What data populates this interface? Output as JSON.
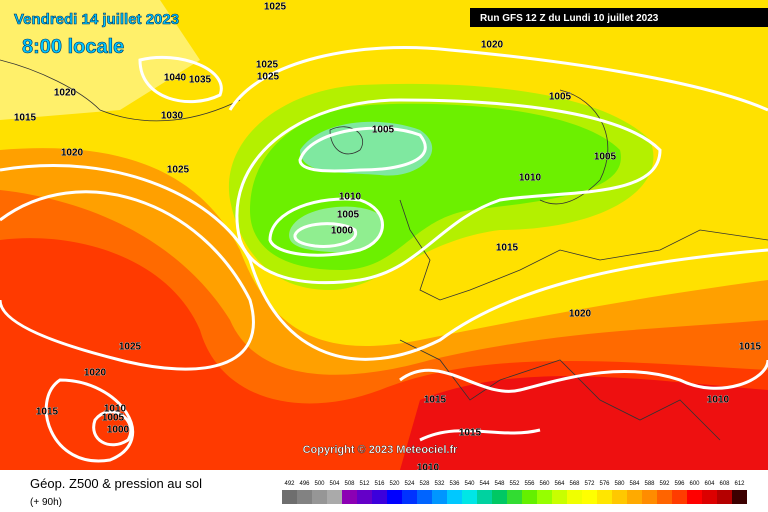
{
  "header": {
    "title": "Vendredi 14 juillet 2023",
    "time": "8:00 locale",
    "run": "Run GFS 12 Z du Lundi 10 juillet 2023"
  },
  "map": {
    "isobar_labels": [
      "1025",
      "1020",
      "1040",
      "1035",
      "1025",
      "1025",
      "1020",
      "1015",
      "1030",
      "1005",
      "1005",
      "1020",
      "1025",
      "1005",
      "1010",
      "1010",
      "1005",
      "1000",
      "1015",
      "1020",
      "1025",
      "1015",
      "1020",
      "1015",
      "1010",
      "1015",
      "1010",
      "1005",
      "1000",
      "1015",
      "1010"
    ],
    "copyright": "Copyright © 2023 Meteociel.fr"
  },
  "footer": {
    "title": "Géop. Z500 & pression au sol",
    "lead": "(+ 90h)"
  },
  "legend": {
    "values": [
      492,
      496,
      500,
      504,
      508,
      512,
      516,
      520,
      524,
      528,
      532,
      536,
      540,
      544,
      548,
      552,
      556,
      560,
      564,
      568,
      572,
      576,
      580,
      584,
      588,
      592,
      596,
      600,
      604,
      608,
      612
    ],
    "colors": [
      "#6e6e6e",
      "#828282",
      "#969696",
      "#aaaaaa",
      "#8c00b4",
      "#6400c8",
      "#3c00dc",
      "#0000ff",
      "#0032ff",
      "#0064ff",
      "#0096ff",
      "#00c8ff",
      "#00e6e6",
      "#00d2a0",
      "#00c864",
      "#32dc32",
      "#64f000",
      "#96ff00",
      "#c8ff00",
      "#f0ff00",
      "#ffff00",
      "#ffe600",
      "#ffc800",
      "#ffaa00",
      "#ff8c00",
      "#ff6400",
      "#ff3c00",
      "#ff0000",
      "#dc0000",
      "#b40000",
      "#3c0000"
    ]
  }
}
